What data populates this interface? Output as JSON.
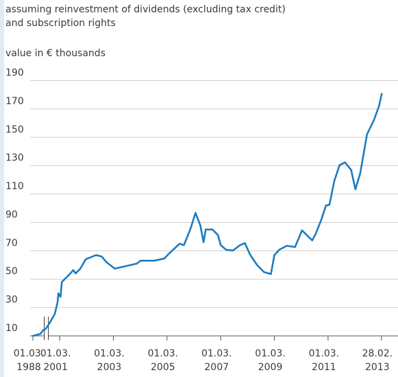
{
  "chart_data": {
    "type": "line",
    "subtitle": "assuming reinvestment of dividends (excluding tax credit)\nand subscription rights",
    "y_label": "value in € thousands",
    "x": [
      1988.17,
      1988.45,
      1988.55,
      1988.65,
      2000.81,
      2000.99,
      2001.09,
      2001.12,
      2001.2,
      2001.25,
      2001.5,
      2001.68,
      2001.76,
      2001.94,
      2002.14,
      2002.52,
      2002.73,
      2002.91,
      2003.22,
      2003.55,
      2004.05,
      2004.18,
      2004.69,
      2005.07,
      2005.23,
      2005.64,
      2005.8,
      2006.05,
      2006.23,
      2006.41,
      2006.53,
      2006.61,
      2006.86,
      2007.07,
      2007.17,
      2007.37,
      2007.63,
      2007.89,
      2008.07,
      2008.27,
      2008.53,
      2008.78,
      2009.04,
      2009.17,
      2009.35,
      2009.63,
      2009.94,
      2010.2,
      2010.38,
      2010.58,
      2010.71,
      2010.92,
      2011.09,
      2011.22,
      2011.4,
      2011.6,
      2011.8,
      2012.03,
      2012.19,
      2012.37,
      2012.62,
      2012.87,
      2013.07,
      2013.17
    ],
    "series": [
      {
        "name": "value",
        "color": "#1a7cc1",
        "values": [
          10,
          11.4,
          14,
          15,
          19.5,
          25.6,
          33.7,
          40,
          37.5,
          48,
          52.7,
          56.4,
          54,
          57.4,
          64,
          66.9,
          66,
          62,
          57.4,
          58.8,
          61,
          63,
          63,
          64.5,
          67.8,
          75,
          74,
          85.8,
          96.7,
          88,
          76,
          85,
          85,
          81,
          74,
          70.7,
          70.2,
          74,
          75.4,
          67,
          59.8,
          55,
          53.6,
          66.9,
          70.7,
          73.5,
          72.6,
          84.4,
          81,
          77.3,
          82,
          92,
          101.9,
          102.4,
          119,
          130.4,
          132.3,
          127,
          113.3,
          124.7,
          152,
          161.7,
          172,
          180.6
        ]
      }
    ],
    "xlim": [
      1987.2,
      2013.7
    ],
    "x_break": [
      1988.67,
      2000.67
    ],
    "xticks": [
      {
        "value": 1988.17,
        "label": "01.03.\n1988"
      },
      {
        "value": 2001.17,
        "label": "01.03.\n2001"
      },
      {
        "value": 2003.17,
        "label": "01.03.\n2003"
      },
      {
        "value": 2005.17,
        "label": "01.03.\n2005"
      },
      {
        "value": 2007.17,
        "label": "01.03.\n2007"
      },
      {
        "value": 2009.17,
        "label": "01.03.\n2009"
      },
      {
        "value": 2011.17,
        "label": "01.03.\n2011"
      },
      {
        "value": 2013.16,
        "label": "28.02.\n2013"
      }
    ],
    "ylim": [
      10,
      197
    ],
    "yticks": [
      10,
      30,
      50,
      70,
      90,
      110,
      130,
      150,
      170,
      190
    ],
    "grid": true
  }
}
